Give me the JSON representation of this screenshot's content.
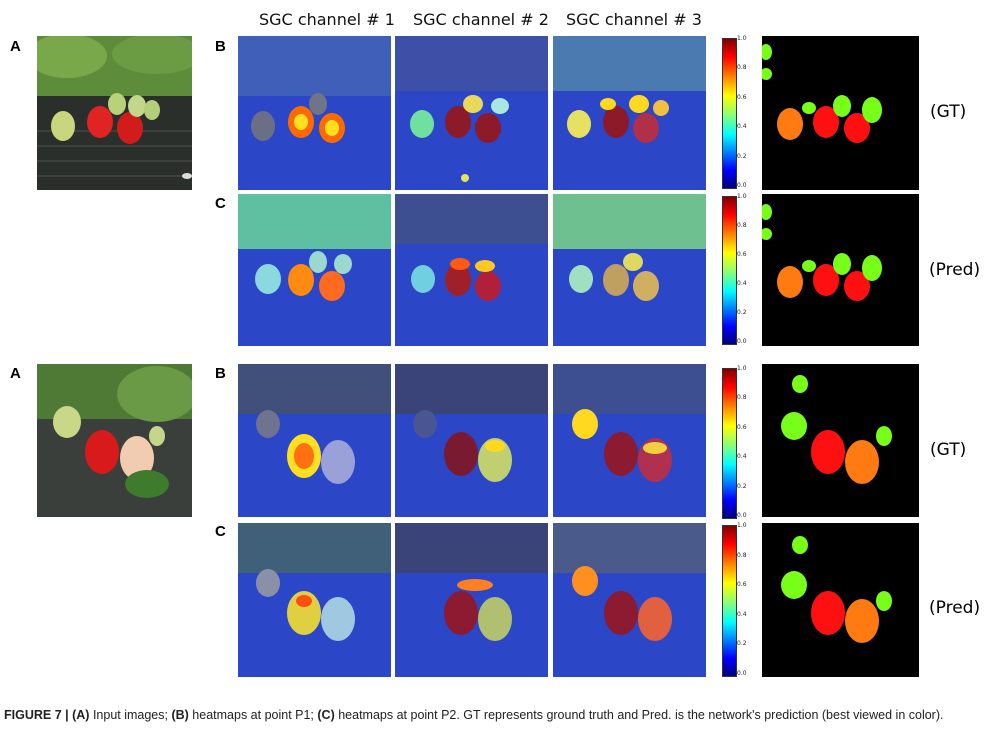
{
  "column_headers": [
    "SGC channel # 1",
    "SGC channel # 2",
    "SGC channel # 3"
  ],
  "panel_labels": {
    "a": "A",
    "b": "B",
    "c": "C"
  },
  "side_labels": {
    "gt": "(GT)",
    "pred": "(Pred)"
  },
  "colorbar_ticks": [
    "1.0",
    "0.8",
    "0.6",
    "0.4",
    "0.2",
    "0.0"
  ],
  "caption": {
    "fig": "FIGURE 7 |",
    "a_label": "(A)",
    "a_text": " Input images; ",
    "b_label": "(B)",
    "b_text": " heatmaps at point P1; ",
    "c_label": "(C)",
    "c_text": " heatmaps at point P2. GT represents ground truth and Pred. is the network's prediction (best viewed in color)."
  },
  "colors": {
    "gt_green": "#77ff1a",
    "gt_red": "#ff1010",
    "gt_orange": "#ff7a10",
    "heat_blue": "#2c46c8"
  }
}
